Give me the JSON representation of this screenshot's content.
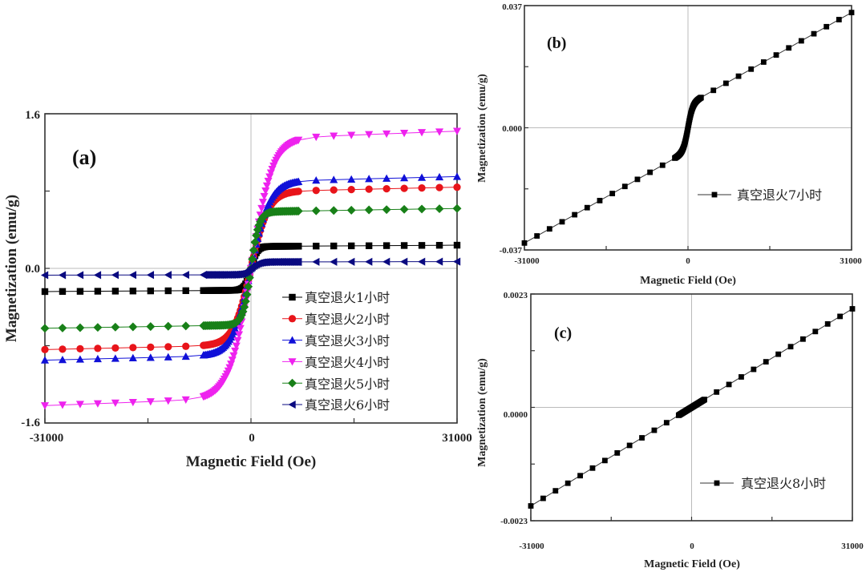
{
  "chart_data": [
    {
      "id": "a",
      "type": "line",
      "panel_label": "(a)",
      "xlabel": "Magnetic Field (Oe)",
      "ylabel": "Magnetization (emu/g)",
      "xlim": [
        -31000,
        31000
      ],
      "ylim": [
        -1.6,
        1.6
      ],
      "xticks": [
        "-31000",
        "0",
        "31000"
      ],
      "yticks": [
        "1.6",
        "0.0",
        "-1.6"
      ],
      "zero_lines": true,
      "legend_position": "bottom-right",
      "series": [
        {
          "name": "真空退火1小时",
          "color": "#000000",
          "marker": "square",
          "ms": 0.24,
          "hk": 900
        },
        {
          "name": "真空退火2小时",
          "color": "#e8141a",
          "marker": "circle",
          "ms": 0.84,
          "hk": 2600
        },
        {
          "name": "真空退火3小时",
          "color": "#1010d8",
          "marker": "triangle-up",
          "ms": 0.95,
          "hk": 2800
        },
        {
          "name": "真空退火4小时",
          "color": "#ee22ee",
          "marker": "triangle-down",
          "ms": 1.42,
          "hk": 3200
        },
        {
          "name": "真空退火5小时",
          "color": "#188018",
          "marker": "diamond",
          "ms": 0.62,
          "hk": 1200
        },
        {
          "name": "真空退火6小时",
          "color": "#0a0a80",
          "marker": "triangle-left",
          "ms": 0.07,
          "hk": 1100
        }
      ]
    },
    {
      "id": "b",
      "type": "line",
      "panel_label": "(b)",
      "xlabel": "Magnetic Field (Oe)",
      "ylabel": "Magnetization (emu/g)",
      "xlim": [
        -31000,
        31000
      ],
      "ylim": [
        -0.037,
        0.037
      ],
      "xticks": [
        "-31000",
        "0",
        "31000"
      ],
      "yticks": [
        "0.037",
        "0.000",
        "-0.037"
      ],
      "zero_lines": true,
      "legend_position": "center-right",
      "series": [
        {
          "name": "真空退火7小时",
          "color": "#000000",
          "marker": "square",
          "slope": 9e-07,
          "ferro": 0.007,
          "hk": 900
        }
      ]
    },
    {
      "id": "c",
      "type": "line",
      "panel_label": "(c)",
      "xlabel": "Magnetic Field (Oe)",
      "ylabel": "Magnetization (emu/g)",
      "xlim": [
        -31000,
        31000
      ],
      "ylim": [
        -0.0023,
        0.0023
      ],
      "xticks": [
        "-31000",
        "0",
        "31000"
      ],
      "yticks": [
        "0.0023",
        "0.0000",
        "-0.0023"
      ],
      "zero_lines": true,
      "legend_position": "bottom-right",
      "series": [
        {
          "name": "真空退火8小时",
          "color": "#000000",
          "marker": "square",
          "slope": 6.45e-08,
          "ferro": 0.0,
          "hk": 0
        }
      ]
    }
  ]
}
